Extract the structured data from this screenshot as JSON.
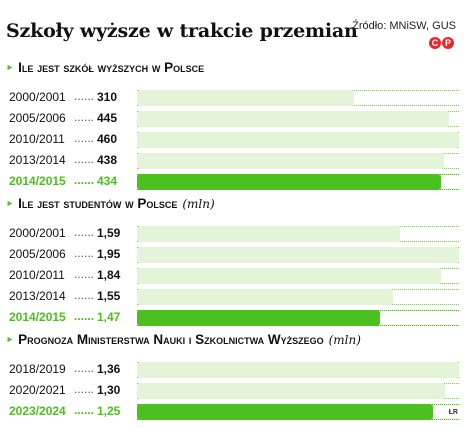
{
  "header": {
    "title": "Szkoły wyższe w trakcie przemian",
    "source": "Źródło: MNiSW, GUS",
    "badge_left": "C",
    "badge_right": "P"
  },
  "chart_data": [
    {
      "type": "bar",
      "title": "Ile jest szkół wyższych w Polsce",
      "unit": "",
      "categories": [
        "2000/2001",
        "2005/2006",
        "2010/2011",
        "2013/2014",
        "2014/2015"
      ],
      "values": [
        310,
        445,
        460,
        438,
        434
      ],
      "value_labels": [
        "310",
        "445",
        "460",
        "438",
        "434"
      ],
      "highlight": "2014/2015",
      "max": 460
    },
    {
      "type": "bar",
      "title": "Ile jest studentów w Polsce",
      "unit": "(mln)",
      "categories": [
        "2000/2001",
        "2005/2006",
        "2010/2011",
        "2013/2014",
        "2014/2015"
      ],
      "values": [
        1.59,
        1.95,
        1.84,
        1.55,
        1.47
      ],
      "value_labels": [
        "1,59",
        "1,95",
        "1,84",
        "1,55",
        "1,47"
      ],
      "highlight": "2014/2015",
      "max": 1.95
    },
    {
      "type": "bar",
      "title": "Prognoza Ministerstwa Nauki i Szkolnictwa Wyższego",
      "unit": "(mln)",
      "categories": [
        "2018/2019",
        "2020/2021",
        "2023/2024"
      ],
      "values": [
        1.36,
        1.3,
        1.25
      ],
      "value_labels": [
        "1,36",
        "1,30",
        "1,25"
      ],
      "highlight": "2023/2024",
      "max": 1.36
    }
  ],
  "footer": {
    "initials": "ŁR"
  },
  "colors": {
    "accent": "#4cc01e",
    "bar_light": "#e4f4d8",
    "badge": "#e8262d"
  }
}
